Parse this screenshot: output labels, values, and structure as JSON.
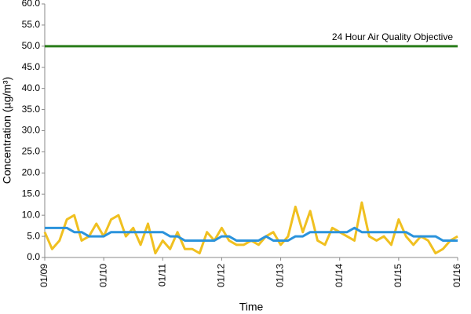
{
  "chart_data": {
    "type": "line",
    "x_label": "Time",
    "y_label": "Concentration (µg/m³)",
    "xlim": [
      0,
      168
    ],
    "xticks": [
      {
        "value": 0,
        "label": "01/09"
      },
      {
        "value": 24,
        "label": "01/10"
      },
      {
        "value": 48,
        "label": "01/11"
      },
      {
        "value": 72,
        "label": "01/12"
      },
      {
        "value": 96,
        "label": "01/13"
      },
      {
        "value": 120,
        "label": "01/14"
      },
      {
        "value": 144,
        "label": "01/15"
      },
      {
        "value": 168,
        "label": "01/16"
      }
    ],
    "ylim": [
      0,
      60
    ],
    "yticks": [
      {
        "value": 0,
        "label": "0.0"
      },
      {
        "value": 5,
        "label": "5.0"
      },
      {
        "value": 10,
        "label": "10.0"
      },
      {
        "value": 15,
        "label": "15.0"
      },
      {
        "value": 20,
        "label": "20.0"
      },
      {
        "value": 25,
        "label": "25.0"
      },
      {
        "value": 30,
        "label": "30.0"
      },
      {
        "value": 35,
        "label": "35.0"
      },
      {
        "value": 40,
        "label": "40.0"
      },
      {
        "value": 45,
        "label": "45.0"
      },
      {
        "value": 50,
        "label": "50.0"
      },
      {
        "value": 55,
        "label": "55.0"
      },
      {
        "value": 60,
        "label": "60.0"
      }
    ],
    "grid": false,
    "x": [
      0,
      3,
      6,
      9,
      12,
      15,
      18,
      21,
      24,
      27,
      30,
      33,
      36,
      39,
      42,
      45,
      48,
      51,
      54,
      57,
      60,
      63,
      66,
      69,
      72,
      75,
      78,
      81,
      84,
      87,
      90,
      93,
      96,
      99,
      102,
      105,
      108,
      111,
      114,
      117,
      120,
      123,
      126,
      129,
      132,
      135,
      138,
      141,
      144,
      147,
      150,
      153,
      156,
      159,
      162,
      165,
      168
    ],
    "series": [
      {
        "color": "#f0c020",
        "values": [
          6,
          2,
          4,
          9,
          10,
          4,
          5,
          8,
          5,
          9,
          10,
          5,
          7,
          3,
          8,
          1,
          4,
          2,
          6,
          2,
          2,
          1,
          6,
          4,
          7,
          4,
          3,
          3,
          4,
          3,
          5,
          6,
          3,
          5,
          12,
          6,
          11,
          4,
          3,
          7,
          6,
          5,
          4,
          13,
          5,
          4,
          5,
          3,
          9,
          5,
          3,
          5,
          4,
          1,
          2,
          4,
          5
        ]
      },
      {
        "color": "#2b93dc",
        "values": [
          7,
          7,
          7,
          7,
          6,
          6,
          5,
          5,
          5,
          6,
          6,
          6,
          6,
          6,
          6,
          6,
          6,
          5,
          5,
          4,
          4,
          4,
          4,
          4,
          5,
          5,
          4,
          4,
          4,
          4,
          5,
          4,
          4,
          4,
          5,
          5,
          6,
          6,
          6,
          6,
          6,
          6,
          7,
          6,
          6,
          6,
          6,
          6,
          6,
          6,
          5,
          5,
          5,
          5,
          4,
          4,
          4
        ]
      }
    ],
    "objective": {
      "value": 50,
      "label": "24 Hour Air Quality Objective",
      "color": "#2a7d1a"
    }
  }
}
